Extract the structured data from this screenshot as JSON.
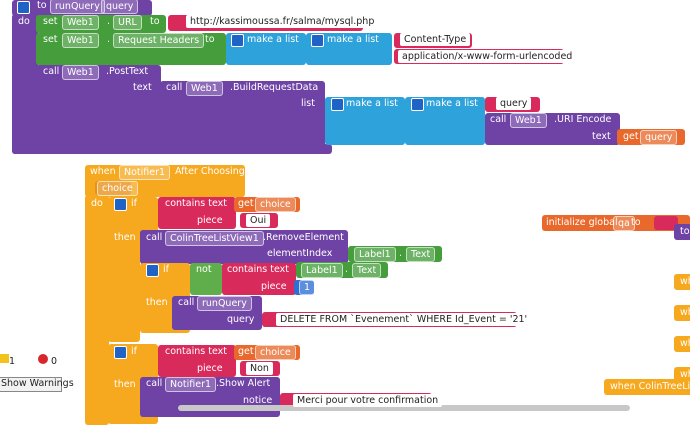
{
  "procedure": [
    "to",
    "runQuery",
    "query",
    "do",
    "set",
    "Web1",
    ".",
    "URL",
    "to",
    "http://kassimoussa.fr/salma/mysql.php",
    "set",
    "Web1",
    ".",
    "Request Headers",
    "to",
    "make a list",
    "make a list",
    "Content-Type",
    "application/x-www-form-urlencoded",
    "call",
    "Web1",
    ".PostText",
    "text",
    "call",
    "Web1",
    ".BuildRequestData",
    "list",
    "make a list",
    "make a list",
    "query",
    "call",
    "Web1",
    ".URI Encode",
    "text",
    "get",
    "query"
  ],
  "event": [
    "when",
    "Notifier1",
    "After Choosing",
    "choice",
    "do",
    "if",
    "contains text",
    "get",
    "choice",
    "piece",
    "Oui",
    "then",
    "call",
    "ColinTreeListView1",
    ".RemoveElement",
    "elementIndex",
    "Label1",
    ".",
    "Text",
    "if",
    "not",
    "contains text",
    "Label1",
    ".",
    "Text",
    "piece",
    "1",
    "then",
    "call",
    "runQuery",
    "query",
    "DELETE FROM `Evenement` WHERE Id_Event = '21'",
    "if",
    "contains text",
    "get",
    "choice",
    "piece",
    "Non",
    "then",
    "call",
    "Notifier1",
    ".Show Alert",
    "notice",
    "Merci pour votre confirmation"
  ],
  "global": [
    "initialize global",
    "qa",
    "to",
    "to"
  ],
  "warnings": [
    "1",
    "0",
    "Show Warnings"
  ],
  "right_edge": [
    "wh",
    "wh",
    "wh",
    "wh",
    "when  ColinTreeLis"
  ]
}
